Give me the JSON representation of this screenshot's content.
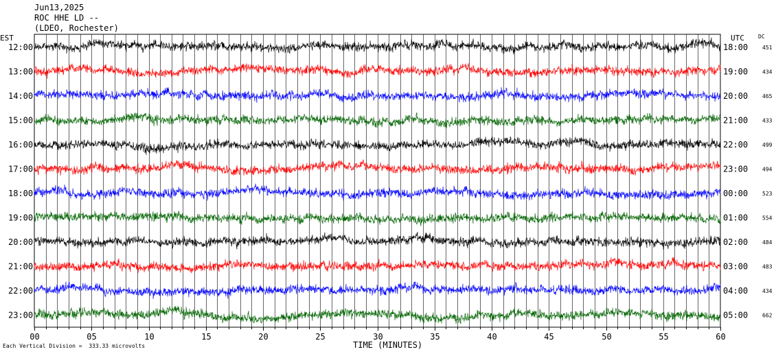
{
  "header": {
    "line1": "Jun13,2025",
    "line2": "ROC HHE LD --",
    "line3": "(LDEO, Rochester)"
  },
  "left_zone_label": "EST",
  "right_zone_label": "UTC",
  "dc_label": "DC",
  "footer_note": "Each Vertical Division =  333.33 microvolts",
  "chart_data": {
    "type": "line",
    "title": "ROC HHE LD --",
    "xlabel": "TIME (MINUTES)",
    "xlim": [
      0,
      60
    ],
    "x_ticks": [
      "00",
      "05",
      "10",
      "15",
      "20",
      "25",
      "30",
      "35",
      "40",
      "45",
      "50",
      "55",
      "60"
    ],
    "traces": [
      {
        "est": "12:00",
        "utc": "18:00",
        "dc": "451",
        "color": "#000000"
      },
      {
        "est": "13:00",
        "utc": "19:00",
        "dc": "434",
        "color": "#ff0000"
      },
      {
        "est": "14:00",
        "utc": "20:00",
        "dc": "465",
        "color": "#0000ff"
      },
      {
        "est": "15:00",
        "utc": "21:00",
        "dc": "433",
        "color": "#006400"
      },
      {
        "est": "16:00",
        "utc": "22:00",
        "dc": "499",
        "color": "#000000"
      },
      {
        "est": "17:00",
        "utc": "23:00",
        "dc": "494",
        "color": "#ff0000"
      },
      {
        "est": "18:00",
        "utc": "00:00",
        "dc": "523",
        "color": "#0000ff"
      },
      {
        "est": "19:00",
        "utc": "01:00",
        "dc": "554",
        "color": "#006400"
      },
      {
        "est": "20:00",
        "utc": "02:00",
        "dc": "484",
        "color": "#000000"
      },
      {
        "est": "21:00",
        "utc": "03:00",
        "dc": "483",
        "color": "#ff0000"
      },
      {
        "est": "22:00",
        "utc": "04:00",
        "dc": "434",
        "color": "#0000ff"
      },
      {
        "est": "23:00",
        "utc": "05:00",
        "dc": "662",
        "color": "#006400"
      }
    ]
  }
}
